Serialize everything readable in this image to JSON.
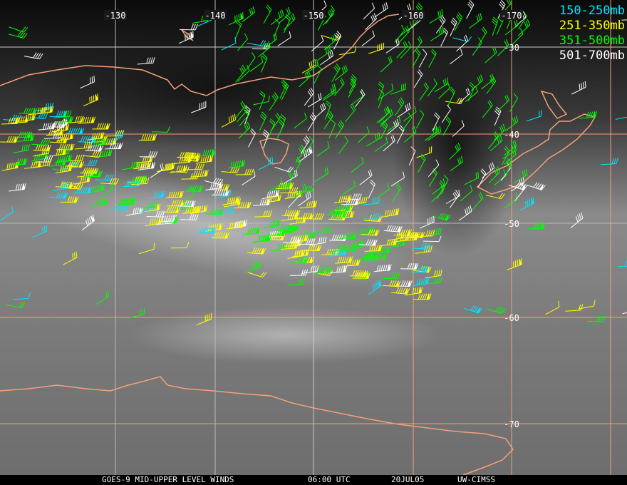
{
  "map": {
    "longitude_labels": [
      "-130",
      "-140",
      "-150",
      "-160",
      "-170"
    ],
    "latitude_labels": [
      "-30",
      "-40",
      "-50",
      "-60",
      "-70"
    ],
    "legend": [
      {
        "label": "150-250mb",
        "color": "#00e5ff"
      },
      {
        "label": "251-350mb",
        "color": "#ffff00"
      },
      {
        "label": "351-500mb",
        "color": "#00ff00"
      },
      {
        "label": "501-700mb",
        "color": "#ffffff"
      }
    ],
    "coastline_color": "#f4a07a",
    "grid_color": "#f4a07a"
  },
  "footer": {
    "product": "GOES-9 MID-UPPER LEVEL WINDS",
    "time": "06:00 UTC",
    "date": "20JUL05",
    "source": "UW-CIMSS"
  }
}
